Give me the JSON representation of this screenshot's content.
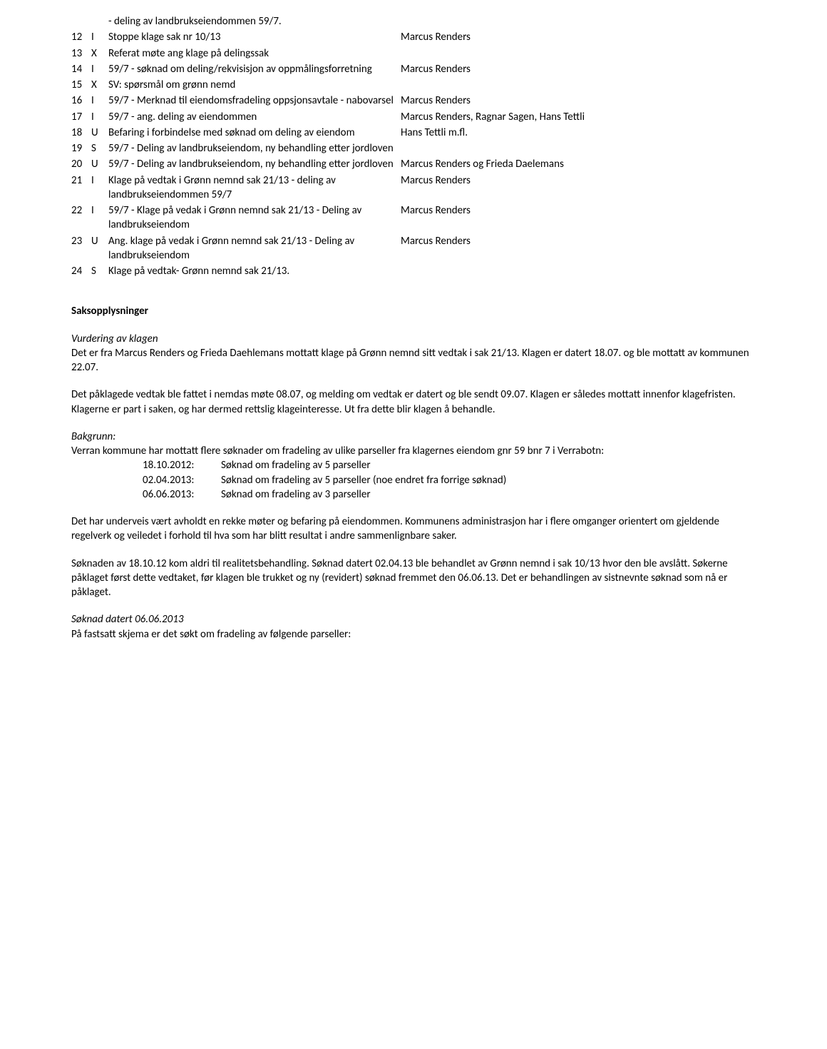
{
  "topLine": "- deling av landbrukseiendommen 59/7.",
  "rows": [
    {
      "n": "12",
      "t": "I",
      "s": "Stoppe klage sak nr 10/13",
      "p": "Marcus Renders"
    },
    {
      "n": "13",
      "t": "X",
      "s": "Referat møte ang klage på delingssak",
      "p": ""
    },
    {
      "n": "14",
      "t": "I",
      "s": "59/7 - søknad om deling/rekvisisjon av oppmålingsforretning",
      "p": "Marcus Renders"
    },
    {
      "n": "15",
      "t": "X",
      "s": "SV: spørsmål om grønn nemd",
      "p": ""
    },
    {
      "n": "16",
      "t": "I",
      "s": "59/7 - Merknad til eiendomsfradeling oppsjonsavtale - nabovarsel",
      "p": "Marcus Renders"
    },
    {
      "n": "17",
      "t": "I",
      "s": "59/7 - ang. deling av eiendommen",
      "p": "Marcus Renders, Ragnar Sagen, Hans Tettli"
    },
    {
      "n": "18",
      "t": "U",
      "s": "Befaring i forbindelse med søknad om deling av eiendom",
      "p": "Hans Tettli m.fl."
    },
    {
      "n": "19",
      "t": "S",
      "s": "59/7 - Deling av landbrukseiendom, ny behandling etter jordloven",
      "p": ""
    },
    {
      "n": "20",
      "t": "U",
      "s": "59/7 - Deling av landbrukseiendom, ny behandling etter jordloven",
      "p": "Marcus Renders og Frieda Daelemans"
    },
    {
      "n": "21",
      "t": "I",
      "s": "Klage på vedtak i Grønn nemnd sak 21/13 - deling av landbrukseiendommen 59/7",
      "p": "Marcus Renders"
    },
    {
      "n": "22",
      "t": "I",
      "s": "59/7 - Klage på vedak i Grønn nemnd sak 21/13 - Deling av landbrukseiendom",
      "p": "Marcus Renders"
    },
    {
      "n": "23",
      "t": "U",
      "s": "Ang. klage på vedak i Grønn nemnd sak 21/13 - Deling av landbrukseiendom",
      "p": "Marcus Renders"
    },
    {
      "n": "24",
      "t": "S",
      "s": "Klage på vedtak- Grønn nemnd sak 21/13.",
      "p": ""
    }
  ],
  "sectionTitle": "Saksopplysninger",
  "vurdHead": "Vurdering av klagen",
  "vurdP1": "Det er fra Marcus Renders og Frieda Daehlemans mottatt klage på Grønn nemnd sitt vedtak i sak 21/13. Klagen er datert 18.07. og ble mottatt av kommunen 22.07.",
  "vurdP2": "Det påklagede vedtak ble fattet i nemdas møte 08.07, og melding om vedtak er datert og ble sendt 09.07. Klagen er således mottatt innenfor klagefristen. Klagerne er part i saken, og har dermed rettslig klageinteresse. Ut fra dette blir klagen å behandle.",
  "bakHead": "Bakgrunn:",
  "bakP1": "Verran kommune har mottatt flere søknader om fradeling av ulike parseller fra klagernes eiendom gnr 59 bnr 7 i Verrabotn:",
  "dates": [
    {
      "d": "18.10.2012:",
      "t": "Søknad om fradeling av 5 parseller"
    },
    {
      "d": "02.04.2013:",
      "t": "Søknad om fradeling av 5 parseller (noe endret fra forrige søknad)"
    },
    {
      "d": "06.06.2013:",
      "t": "Søknad om fradeling av 3 parseller"
    }
  ],
  "bakP2": "Det har underveis vært avholdt en rekke møter og befaring på eiendommen. Kommunens administrasjon har i flere omganger orientert om gjeldende regelverk og veiledet i forhold til hva som har blitt resultat i andre sammenlignbare saker.",
  "bakP3": "Søknaden av 18.10.12 kom aldri til realitetsbehandling. Søknad datert 02.04.13 ble behandlet av Grønn nemnd i sak 10/13 hvor den ble avslått. Søkerne påklaget først dette vedtaket, før klagen ble trukket og ny (revidert) søknad fremmet den 06.06.13. Det er behandlingen av sistnevnte søknad som nå er påklaget.",
  "soknadHead": "Søknad datert 06.06.2013",
  "soknadP1": "På fastsatt skjema er det søkt om fradeling av følgende parseller:"
}
